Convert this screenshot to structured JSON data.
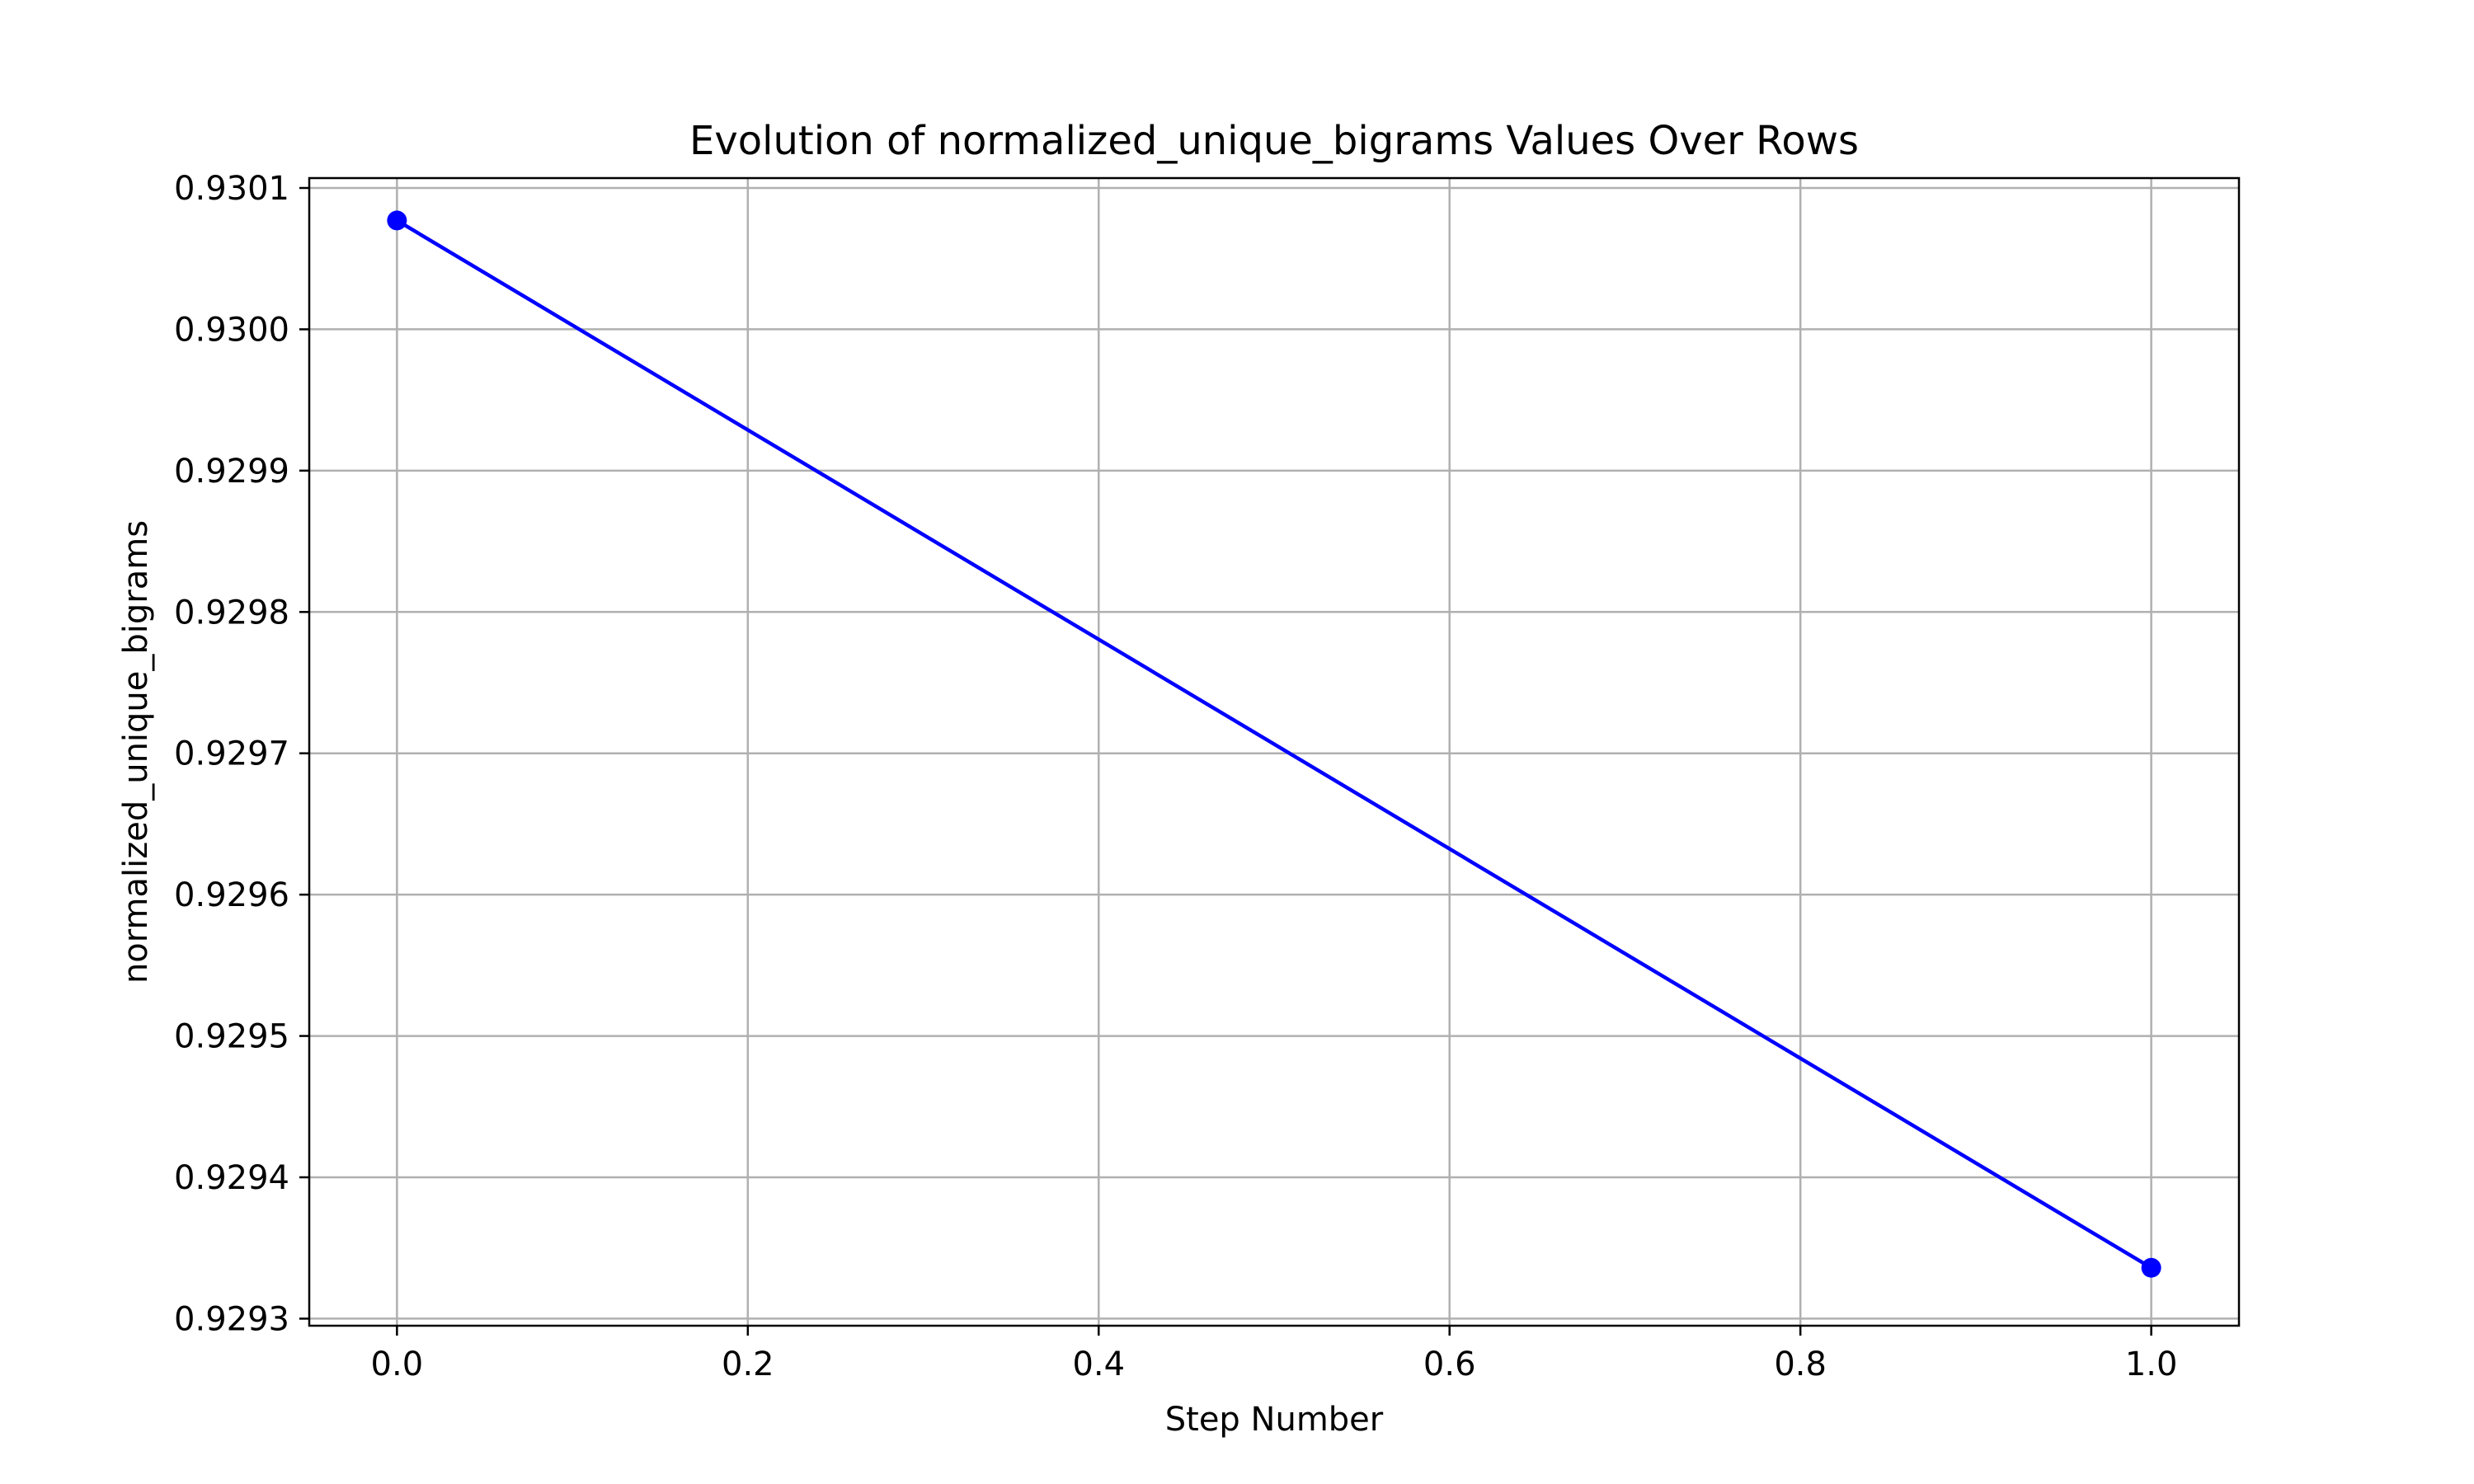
{
  "chart_data": {
    "type": "line",
    "title": "Evolution of normalized_unique_bigrams Values Over Rows",
    "xlabel": "Step Number",
    "ylabel": "normalized_unique_bigrams",
    "xlim": [
      -0.05,
      1.05
    ],
    "ylim": [
      0.929295,
      0.930107
    ],
    "xticks": [
      {
        "value": 0.0,
        "label": "0.0"
      },
      {
        "value": 0.2,
        "label": "0.2"
      },
      {
        "value": 0.4,
        "label": "0.4"
      },
      {
        "value": 0.6,
        "label": "0.6"
      },
      {
        "value": 0.8,
        "label": "0.8"
      },
      {
        "value": 1.0,
        "label": "1.0"
      }
    ],
    "yticks": [
      {
        "value": 0.9293,
        "label": "0.9293"
      },
      {
        "value": 0.9294,
        "label": "0.9294"
      },
      {
        "value": 0.9295,
        "label": "0.9295"
      },
      {
        "value": 0.9296,
        "label": "0.9296"
      },
      {
        "value": 0.9297,
        "label": "0.9297"
      },
      {
        "value": 0.9298,
        "label": "0.9298"
      },
      {
        "value": 0.9299,
        "label": "0.9299"
      },
      {
        "value": 0.93,
        "label": "0.9300"
      },
      {
        "value": 0.9301,
        "label": "0.9301"
      }
    ],
    "grid": true,
    "series": [
      {
        "color": "#0000ff",
        "marker": "circle",
        "x": [
          0,
          1
        ],
        "y": [
          0.930077,
          0.929336
        ]
      }
    ]
  }
}
